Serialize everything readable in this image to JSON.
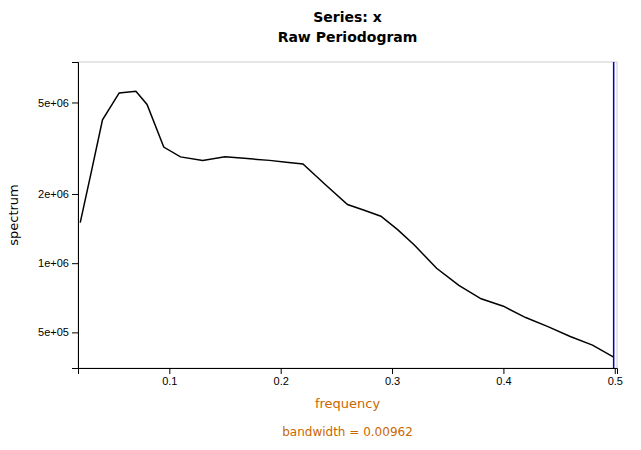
{
  "chart_data": {
    "type": "line",
    "title": "Series: x",
    "subtitle": "Raw Periodogram",
    "xlabel": {
      "text": "frequency",
      "color": "#cc6600"
    },
    "ylabel": "spectrum",
    "log": "y",
    "grid": false,
    "color": "#000000",
    "xlim": [
      0.018,
      0.502
    ],
    "ylim": [
      350000.0,
      7500000.0
    ],
    "xticks": [
      0.1,
      0.2,
      0.3,
      0.4,
      0.5
    ],
    "yticks": [
      {
        "value": 500000,
        "label": "5e+05"
      },
      {
        "value": 1000000,
        "label": "1e+06"
      },
      {
        "value": 2000000,
        "label": "2e+06"
      },
      {
        "value": 5000000,
        "label": "5e+06"
      }
    ],
    "x": [
      0.02,
      0.03,
      0.04,
      0.055,
      0.07,
      0.08,
      0.095,
      0.11,
      0.13,
      0.15,
      0.17,
      0.19,
      0.205,
      0.22,
      0.24,
      0.26,
      0.275,
      0.29,
      0.305,
      0.32,
      0.34,
      0.36,
      0.38,
      0.4,
      0.42,
      0.44,
      0.46,
      0.48,
      0.499
    ],
    "values": [
      1500000,
      2500000,
      4200000,
      5500000,
      5600000,
      4900000,
      3200000,
      2900000,
      2800000,
      2900000,
      2850000,
      2800000,
      2750000,
      2700000,
      2200000,
      1800000,
      1700000,
      1600000,
      1400000,
      1200000,
      950000,
      800000,
      700000,
      650000,
      580000,
      530000,
      480000,
      440000,
      390000
    ],
    "annotations": [
      {
        "type": "vline",
        "x": 0.499,
        "color": "#0000cc"
      },
      {
        "text": "bandwidth = 0.00962",
        "color": "#cc6600"
      }
    ]
  }
}
